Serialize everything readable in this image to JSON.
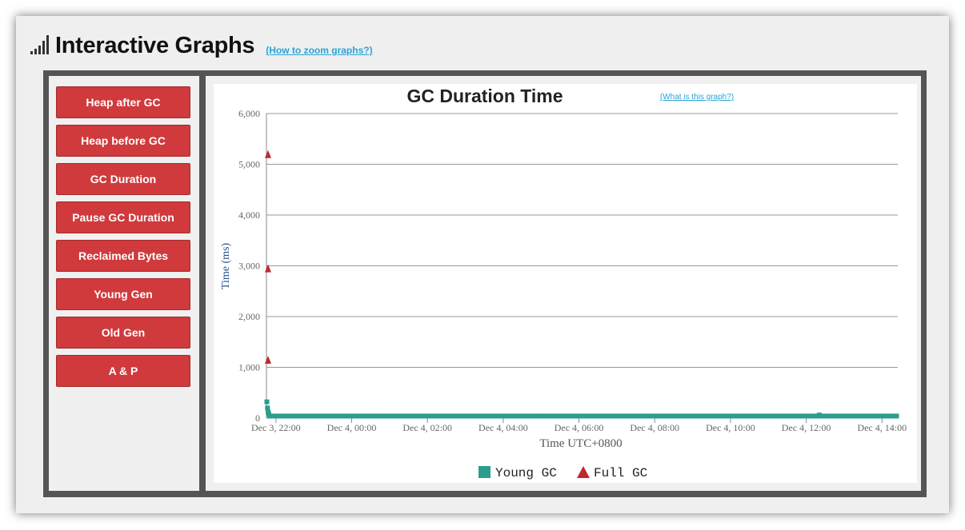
{
  "header": {
    "title": "Interactive Graphs",
    "zoom_link": "(How to zoom graphs?)"
  },
  "sidebar": {
    "buttons": [
      "Heap after GC",
      "Heap before GC",
      "GC Duration",
      "Pause GC Duration",
      "Reclaimed Bytes",
      "Young Gen",
      "Old Gen",
      "A & P"
    ]
  },
  "colors": {
    "accent_red": "#d03a3c",
    "young_gc": "#2a9d8f",
    "full_gc": "#c0282d",
    "link": "#29a3d8"
  },
  "chart_data": {
    "type": "scatter",
    "title": "GC Duration Time",
    "help_link": "(What is this graph?)",
    "xlabel": "Time UTC+0800",
    "ylabel": "Time (ms)",
    "ylim": [
      0,
      6000
    ],
    "yticks": [
      "0",
      "1,000",
      "2,000",
      "3,000",
      "4,000",
      "5,000",
      "6,000"
    ],
    "xticks": [
      "Dec 3, 22:00",
      "Dec 4, 00:00",
      "Dec 4, 02:00",
      "Dec 4, 04:00",
      "Dec 4, 06:00",
      "Dec 4, 08:00",
      "Dec 4, 10:00",
      "Dec 4, 12:00",
      "Dec 4, 14:00"
    ],
    "xlim": [
      "Dec 3, 21:45",
      "Dec 4, 14:25"
    ],
    "grid": true,
    "legend_position": "bottom-center",
    "series": [
      {
        "name": "Young GC",
        "marker": "square",
        "note_values_ms": "mostly ~50 ms, with early values up to ~300 ms",
        "points": [
          {
            "x": "Dec 3, 21:45",
            "y": 320
          },
          {
            "x": "Dec 3, 21:46",
            "y": 200
          },
          {
            "x": "Dec 3, 21:47",
            "y": 120
          },
          {
            "x": "Dec 3, 21:48",
            "y": 80
          },
          {
            "x": "Dec 4, 12:20",
            "y": 60
          }
        ],
        "baseline_ms": 40,
        "baseline_range": [
          "Dec 3, 21:50",
          "Dec 4, 14:25"
        ]
      },
      {
        "name": "Full GC",
        "marker": "triangle",
        "points": [
          {
            "x": "Dec 3, 21:45",
            "y": 5200
          },
          {
            "x": "Dec 3, 21:45",
            "y": 2950
          },
          {
            "x": "Dec 3, 21:45",
            "y": 1150
          }
        ]
      }
    ]
  }
}
